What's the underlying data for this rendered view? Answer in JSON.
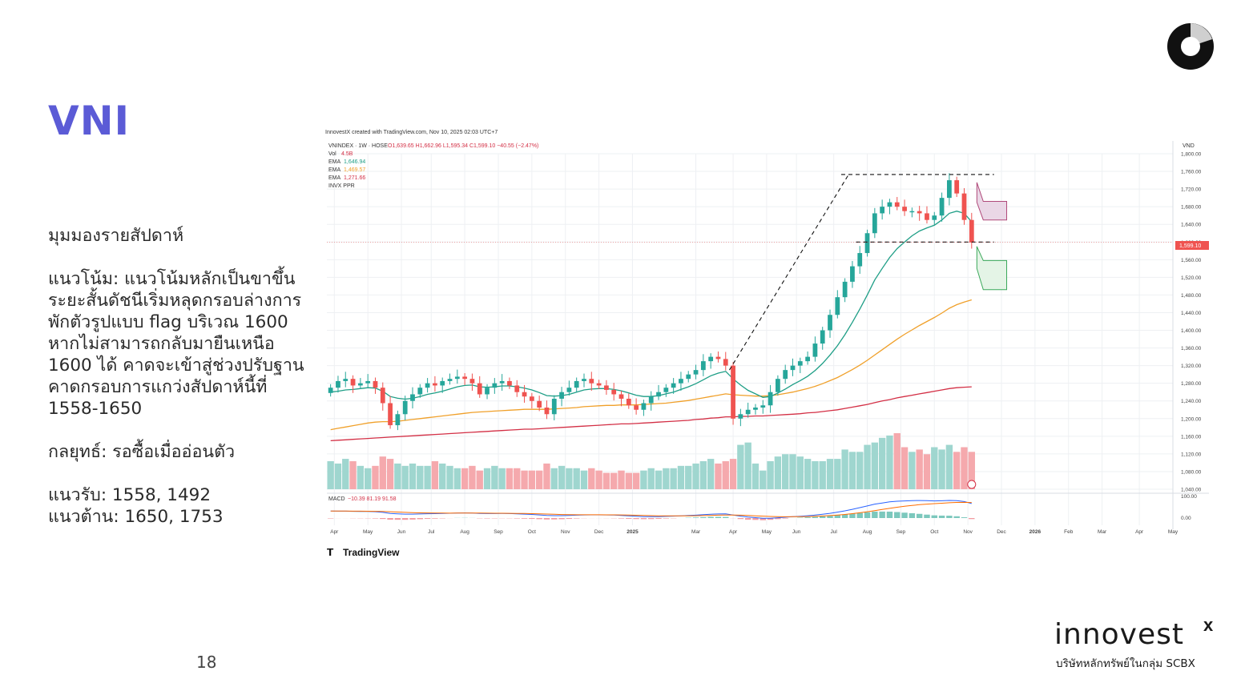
{
  "slide": {
    "title": "VNI",
    "page_number": "18",
    "commentary": {
      "heading": "มุมมองรายสัปดาห์",
      "trend_lines": [
        "แนวโน้ม: แนวโน้มหลักเป็นขาขึ้น",
        "ระยะสั้นดัชนีเริ่มหลุดกรอบล่างการ",
        "พักตัวรูปแบบ flag บริเวณ 1600",
        "หากไม่สามารถกลับมายืนเหนือ",
        "1600 ได้ คาดจะเข้าสู่ช่วงปรับฐาน",
        "คาดกรอบการแกว่งสัปดาห์นี้ที่",
        "1558-1650"
      ],
      "strategy": "กลยุทธ์: รอซื้อเมื่ออ่อนตัว",
      "support": "แนวรับ: 1558, 1492",
      "resistance": "แนวต้าน: 1650, 1753"
    },
    "brand": {
      "name": "innovest",
      "suffix": "x",
      "subtitle": "บริษัทหลักทรัพย์ในกลุ่ม SCBX"
    }
  },
  "chart_header": {
    "credit": "InnovestX created with TradingView.com, Nov 10, 2025 02:03 UTC+7",
    "symbol_line": "VNINDEX · 1W · HOSE",
    "ohlc": "O1,639.65 H1,662.96 L1,595.34 C1,599.10 −40.55 (−2.47%)",
    "vol_label": "Vol",
    "vol_value": "4.5B",
    "ema_label": "EMA",
    "ema_values": [
      "1,646.94",
      "1,469.57",
      "1,271.66"
    ],
    "extra": "INVX PPR",
    "currency": "VND",
    "macd_label": "MACD",
    "macd_values": "−10.39  81.19  91.58",
    "last_price_label": "1,599.10",
    "footer_logo": "TradingView"
  },
  "colors": {
    "up": "#26a69a",
    "down": "#ef5350",
    "ema_fast": "#1e9e86",
    "ema_mid": "#f0a02a",
    "ema_slow": "#d32f45",
    "title": "#5b5bd6",
    "grid": "#eef0f3"
  },
  "chart_data": {
    "type": "candlestick",
    "interval": "1W",
    "ylim": [
      1040,
      1800
    ],
    "y_ticks": [
      "1,800.00",
      "1,760.00",
      "1,720.00",
      "1,680.00",
      "1,640.00",
      "1,600.00",
      "1,560.00",
      "1,520.00",
      "1,480.00",
      "1,440.00",
      "1,400.00",
      "1,360.00",
      "1,320.00",
      "1,280.00",
      "1,240.00",
      "1,200.00",
      "1,160.00",
      "1,120.00",
      "1,080.00",
      "1,040.00"
    ],
    "x_ticks": [
      {
        "label": "Apr",
        "week": 1
      },
      {
        "label": "May",
        "week": 5.5
      },
      {
        "label": "Jun",
        "week": 10
      },
      {
        "label": "Jul",
        "week": 14
      },
      {
        "label": "Aug",
        "week": 18.5
      },
      {
        "label": "Sep",
        "week": 23
      },
      {
        "label": "Oct",
        "week": 27.5
      },
      {
        "label": "Nov",
        "week": 32
      },
      {
        "label": "Dec",
        "week": 36.5
      },
      {
        "label": "2025",
        "week": 41
      },
      {
        "label": "Mar",
        "week": 49.5
      },
      {
        "label": "Apr",
        "week": 54.5
      },
      {
        "label": "May",
        "week": 59
      },
      {
        "label": "Jun",
        "week": 63
      },
      {
        "label": "Jul",
        "week": 68
      },
      {
        "label": "Aug",
        "week": 72.5
      },
      {
        "label": "Sep",
        "week": 77
      },
      {
        "label": "Oct",
        "week": 81.5
      },
      {
        "label": "Nov",
        "week": 86
      },
      {
        "label": "Dec",
        "week": 90.5
      },
      {
        "label": "2026",
        "week": 95
      },
      {
        "label": "Feb",
        "week": 99.5
      },
      {
        "label": "Mar",
        "week": 104
      },
      {
        "label": "Apr",
        "week": 109
      },
      {
        "label": "May",
        "week": 113.5
      }
    ],
    "total_weeks": 113.5,
    "closes": [
      1270,
      1285,
      1290,
      1275,
      1280,
      1285,
      1270,
      1235,
      1185,
      1210,
      1240,
      1255,
      1270,
      1280,
      1275,
      1285,
      1290,
      1295,
      1290,
      1280,
      1255,
      1270,
      1280,
      1285,
      1275,
      1260,
      1250,
      1240,
      1225,
      1210,
      1245,
      1260,
      1270,
      1285,
      1290,
      1280,
      1275,
      1265,
      1255,
      1245,
      1230,
      1220,
      1235,
      1250,
      1260,
      1270,
      1280,
      1290,
      1300,
      1310,
      1330,
      1340,
      1335,
      1320,
      1200,
      1210,
      1220,
      1225,
      1230,
      1260,
      1290,
      1310,
      1320,
      1330,
      1340,
      1370,
      1400,
      1435,
      1475,
      1510,
      1545,
      1575,
      1620,
      1665,
      1680,
      1690,
      1680,
      1670,
      1670,
      1665,
      1650,
      1660,
      1700,
      1740,
      1710,
      1650,
      1599
    ],
    "highs_lows_note": "weekly OHLC approximated from chart",
    "ema_fast": [
      1260,
      1262,
      1265,
      1266,
      1268,
      1270,
      1269,
      1262,
      1250,
      1246,
      1244,
      1246,
      1250,
      1255,
      1258,
      1262,
      1267,
      1272,
      1275,
      1276,
      1272,
      1271,
      1272,
      1274,
      1274,
      1272,
      1269,
      1265,
      1259,
      1252,
      1251,
      1252,
      1255,
      1260,
      1265,
      1267,
      1268,
      1268,
      1266,
      1263,
      1258,
      1253,
      1250,
      1250,
      1252,
      1256,
      1260,
      1266,
      1272,
      1279,
      1288,
      1297,
      1303,
      1307,
      1290,
      1276,
      1264,
      1256,
      1248,
      1250,
      1258,
      1267,
      1277,
      1286,
      1296,
      1309,
      1325,
      1344,
      1365,
      1390,
      1418,
      1448,
      1480,
      1514,
      1540,
      1565,
      1585,
      1600,
      1614,
      1625,
      1632,
      1638,
      1650,
      1665,
      1670,
      1665,
      1646
    ],
    "ema_mid": [
      1175,
      1178,
      1181,
      1184,
      1187,
      1190,
      1192,
      1193,
      1193,
      1194,
      1196,
      1198,
      1200,
      1202,
      1204,
      1206,
      1208,
      1210,
      1212,
      1214,
      1215,
      1216,
      1217,
      1218,
      1219,
      1220,
      1221,
      1221,
      1221,
      1221,
      1222,
      1223,
      1224,
      1225,
      1227,
      1228,
      1229,
      1230,
      1230,
      1231,
      1231,
      1231,
      1232,
      1233,
      1234,
      1235,
      1237,
      1239,
      1241,
      1244,
      1247,
      1250,
      1253,
      1256,
      1254,
      1253,
      1252,
      1251,
      1251,
      1252,
      1254,
      1257,
      1260,
      1264,
      1268,
      1273,
      1279,
      1286,
      1293,
      1302,
      1311,
      1321,
      1332,
      1344,
      1356,
      1368,
      1380,
      1391,
      1401,
      1411,
      1420,
      1429,
      1439,
      1450,
      1458,
      1464,
      1469
    ],
    "ema_slow": [
      1150,
      1151,
      1152,
      1153,
      1154,
      1155,
      1156,
      1157,
      1158,
      1159,
      1160,
      1161,
      1162,
      1163,
      1164,
      1165,
      1166,
      1167,
      1168,
      1169,
      1170,
      1171,
      1172,
      1173,
      1174,
      1175,
      1176,
      1176,
      1177,
      1178,
      1179,
      1180,
      1181,
      1182,
      1183,
      1184,
      1185,
      1186,
      1187,
      1188,
      1188,
      1189,
      1190,
      1191,
      1192,
      1193,
      1194,
      1195,
      1196,
      1198,
      1199,
      1201,
      1202,
      1204,
      1204,
      1205,
      1205,
      1206,
      1206,
      1207,
      1208,
      1209,
      1210,
      1211,
      1213,
      1214,
      1216,
      1218,
      1220,
      1223,
      1226,
      1229,
      1232,
      1236,
      1240,
      1243,
      1247,
      1250,
      1253,
      1256,
      1259,
      1262,
      1265,
      1268,
      1270,
      1271,
      1272
    ],
    "volume_relative": [
      0.6,
      0.55,
      0.65,
      0.6,
      0.5,
      0.45,
      0.5,
      0.7,
      0.65,
      0.55,
      0.5,
      0.55,
      0.5,
      0.5,
      0.6,
      0.55,
      0.5,
      0.45,
      0.45,
      0.5,
      0.4,
      0.45,
      0.5,
      0.45,
      0.45,
      0.45,
      0.4,
      0.4,
      0.4,
      0.55,
      0.45,
      0.5,
      0.45,
      0.45,
      0.4,
      0.45,
      0.4,
      0.35,
      0.35,
      0.4,
      0.35,
      0.35,
      0.4,
      0.45,
      0.4,
      0.45,
      0.45,
      0.5,
      0.5,
      0.55,
      0.6,
      0.65,
      0.55,
      0.6,
      0.65,
      0.95,
      1.0,
      0.55,
      0.4,
      0.6,
      0.7,
      0.75,
      0.75,
      0.7,
      0.65,
      0.6,
      0.6,
      0.65,
      0.65,
      0.85,
      0.8,
      0.8,
      0.95,
      1.0,
      1.1,
      1.15,
      1.2,
      0.9,
      0.8,
      0.85,
      0.75,
      0.9,
      0.85,
      0.95,
      0.8,
      0.9,
      0.8
    ],
    "annotations": {
      "resistance_dashed": 1753,
      "support_dashed": 1600,
      "projection_upper_box": [
        1650,
        1692
      ],
      "projection_lower_box": [
        1492,
        1558
      ]
    }
  }
}
